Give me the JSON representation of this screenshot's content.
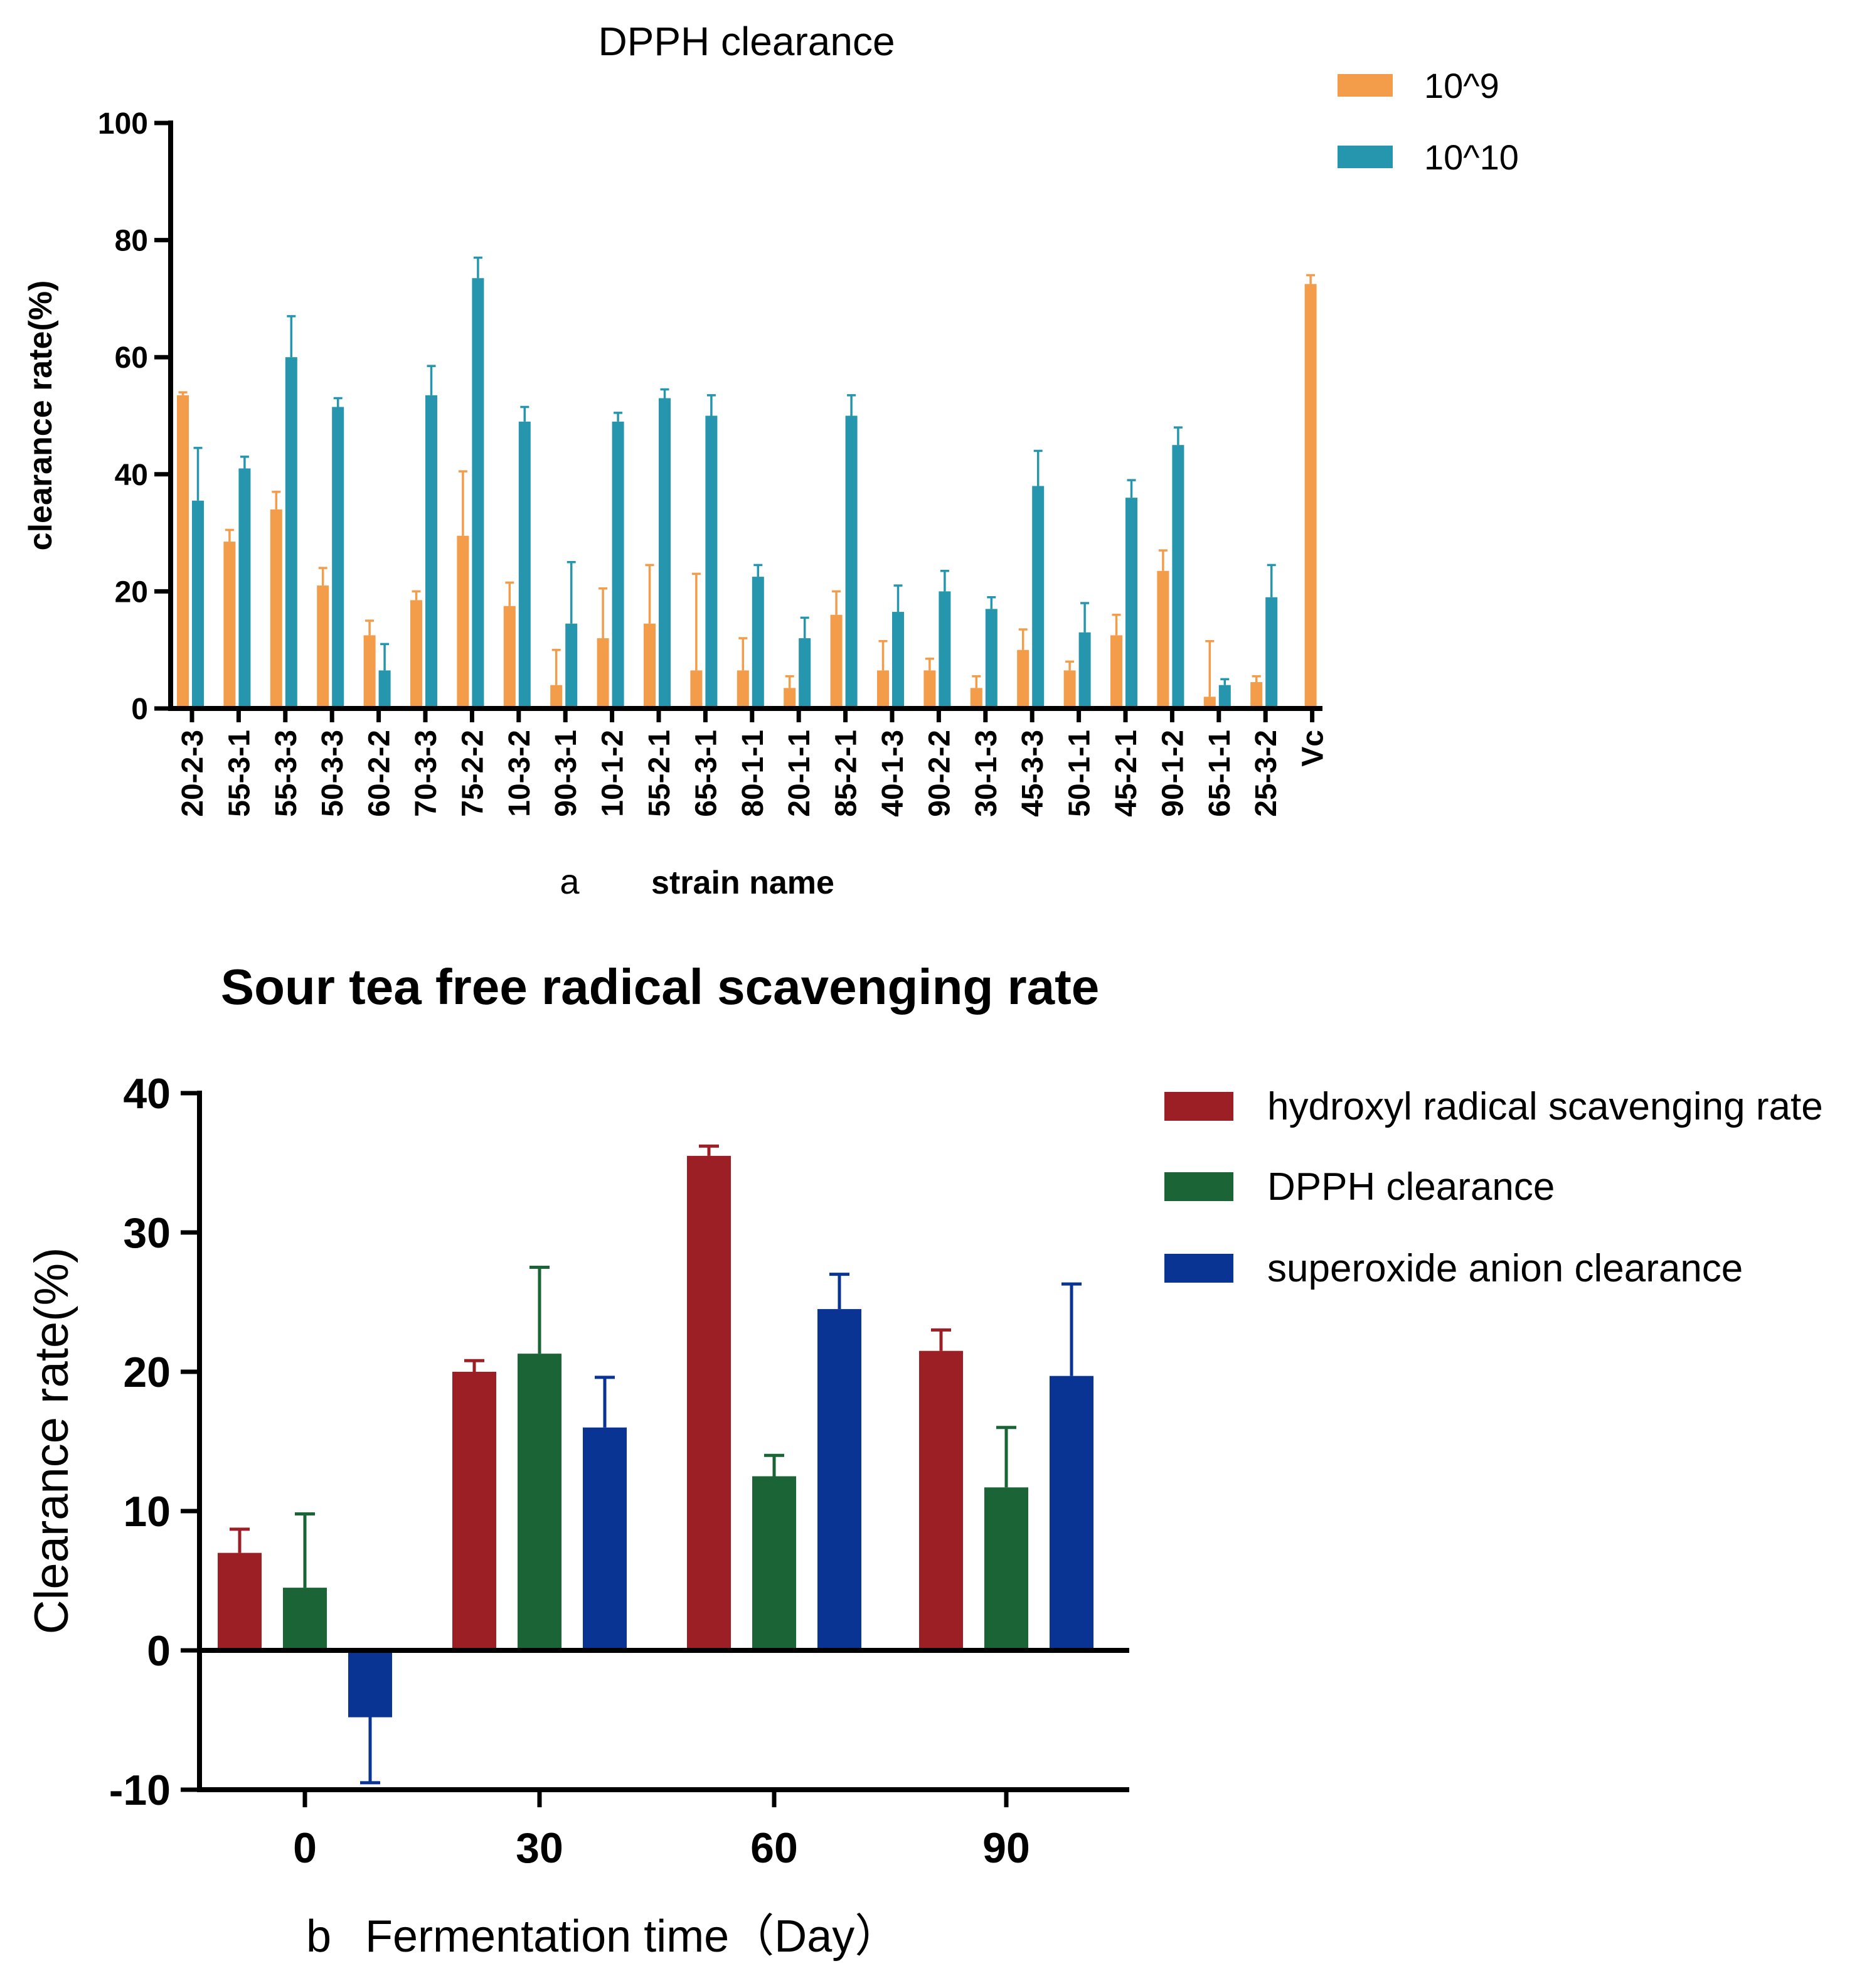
{
  "chart_data": [
    {
      "panel_label": "a",
      "type": "bar",
      "title": "DPPH clearance",
      "xlabel": "strain name",
      "ylabel": "clearance rate(%)",
      "ylim": [
        0,
        100
      ],
      "yticks": [
        0,
        20,
        40,
        60,
        80,
        100
      ],
      "categories": [
        "20-2-3",
        "55-3-1",
        "55-3-3",
        "50-3-3",
        "60-2-2",
        "70-3-3",
        "75-2-2",
        "10-3-2",
        "90-3-1",
        "10-1-2",
        "55-2-1",
        "65-3-1",
        "80-1-1",
        "20-1-1",
        "85-2-1",
        "40-1-3",
        "90-2-2",
        "30-1-3",
        "45-3-3",
        "50-1-1",
        "45-2-1",
        "90-1-2",
        "65-1-1",
        "25-3-2",
        "Vc"
      ],
      "series": [
        {
          "name": "10^9",
          "color": "#F39C4A",
          "values": [
            53.5,
            28.5,
            34,
            21,
            12.5,
            18.5,
            29.5,
            17.5,
            4,
            12,
            14.5,
            6.5,
            6.5,
            3.5,
            16,
            6.5,
            6.5,
            3.5,
            10,
            6.5,
            12.5,
            23.5,
            2,
            4.5,
            72.5
          ],
          "errors": [
            0.5,
            2,
            3,
            3,
            2.5,
            1.5,
            11,
            4,
            6,
            8.5,
            10,
            16.5,
            5.5,
            2,
            4,
            5,
            2,
            2,
            3.5,
            1.5,
            3.5,
            3.5,
            9.5,
            1,
            1.5
          ]
        },
        {
          "name": "10^10",
          "color": "#2596AE",
          "values": [
            35.5,
            41,
            60,
            51.5,
            6.5,
            53.5,
            73.5,
            49,
            14.5,
            49,
            53,
            50,
            22.5,
            12,
            50,
            16.5,
            20,
            17,
            38,
            13,
            36,
            45,
            4,
            19,
            null
          ],
          "errors": [
            9,
            2,
            7,
            1.5,
            4.5,
            5,
            3.5,
            2.5,
            10.5,
            1.5,
            1.5,
            3.5,
            2,
            3.5,
            3.5,
            4.5,
            3.5,
            2,
            6,
            5,
            3,
            3,
            1,
            5.5,
            null
          ]
        }
      ]
    },
    {
      "panel_label": "b",
      "type": "bar",
      "title": "Sour tea free radical scavenging rate",
      "xlabel": "Fermentation time（Day）",
      "ylabel": "Clearance rate(%)",
      "ylim": [
        -10,
        40
      ],
      "yticks": [
        -10,
        0,
        10,
        20,
        30,
        40
      ],
      "categories": [
        "0",
        "30",
        "60",
        "90"
      ],
      "series": [
        {
          "name": "hydroxyl radical scavenging rate",
          "color": "#9B1F24",
          "values": [
            7,
            20,
            35.5,
            21.5
          ],
          "errors": [
            1.7,
            0.8,
            0.7,
            1.5
          ]
        },
        {
          "name": "DPPH clearance",
          "color": "#1A6436",
          "values": [
            4.5,
            21.3,
            12.5,
            11.7
          ],
          "errors": [
            5.3,
            6.2,
            1.5,
            4.3
          ]
        },
        {
          "name": "superoxide anion clearance",
          "color": "#0A3494",
          "values": [
            -4.8,
            16,
            24.5,
            19.7
          ],
          "errors": [
            4.7,
            3.6,
            2.5,
            6.6
          ]
        }
      ]
    }
  ]
}
